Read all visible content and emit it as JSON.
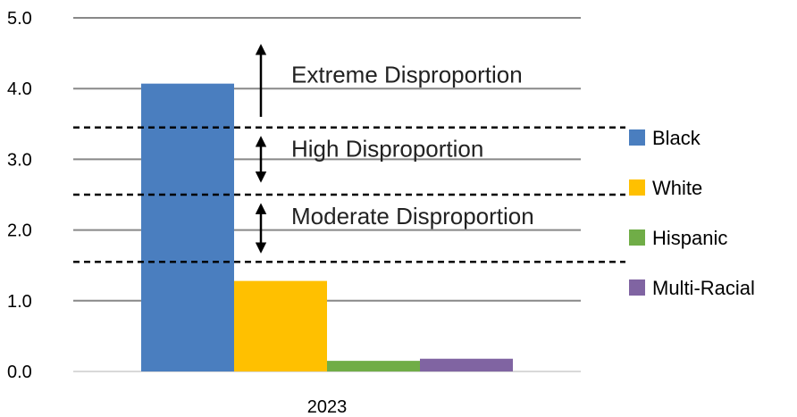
{
  "chart_data": {
    "type": "bar",
    "categories": [
      "2023"
    ],
    "series": [
      {
        "name": "Black",
        "values": [
          4.07
        ],
        "color": "#4a7ebf"
      },
      {
        "name": "White",
        "values": [
          1.28
        ],
        "color": "#ffc000"
      },
      {
        "name": "Hispanic",
        "values": [
          0.15
        ],
        "color": "#70ad47"
      },
      {
        "name": "Multi-Racial",
        "values": [
          0.18
        ],
        "color": "#8064a2"
      }
    ],
    "ylim": [
      0,
      5
    ],
    "yticks": [
      "0.0",
      "1.0",
      "2.0",
      "3.0",
      "4.0",
      "5.0"
    ],
    "grid": true,
    "legend": "right",
    "thresholds": [
      {
        "value": 1.55,
        "style": "dashed"
      },
      {
        "value": 2.5,
        "style": "dashed"
      },
      {
        "value": 3.45,
        "style": "dashed"
      }
    ],
    "annotations": [
      {
        "label": "Extreme Disproportion",
        "value": 4.2
      },
      {
        "label": "High Disproportion",
        "value": 3.15
      },
      {
        "label": "Moderate Disproportion",
        "value": 2.2
      }
    ]
  }
}
